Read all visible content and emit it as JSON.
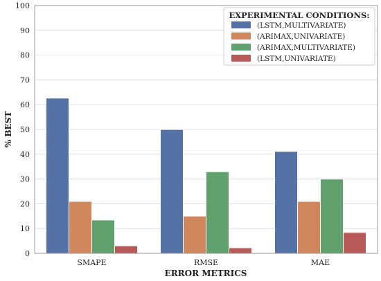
{
  "chart_data": {
    "type": "bar",
    "categories": [
      "SMAPE",
      "RMSE",
      "MAE"
    ],
    "series": [
      {
        "name": "(LSTM,MULTIVARIATE)",
        "values": [
          62.5,
          49.8,
          41.0
        ],
        "color": "#5572a6"
      },
      {
        "name": "(ARIMAX,UNIVARIATE)",
        "values": [
          20.8,
          14.9,
          20.8
        ],
        "color": "#d1875e"
      },
      {
        "name": "(ARIMAX,MULTIVARIATE)",
        "values": [
          13.3,
          32.8,
          29.8
        ],
        "color": "#5fa06d"
      },
      {
        "name": "(LSTM,UNIVARIATE)",
        "values": [
          2.9,
          2.1,
          8.3
        ],
        "color": "#b85a5a"
      }
    ],
    "xlabel": "ERROR METRICS",
    "ylabel": "% BEST",
    "ylim": [
      0,
      100
    ],
    "yticks": [
      "0",
      "10",
      "20",
      "30",
      "40",
      "50",
      "60",
      "70",
      "80",
      "90",
      "100"
    ],
    "legend_title": "EXPERIMENTAL CONDITIONS:",
    "legend_position": "top-right",
    "grid": true
  }
}
